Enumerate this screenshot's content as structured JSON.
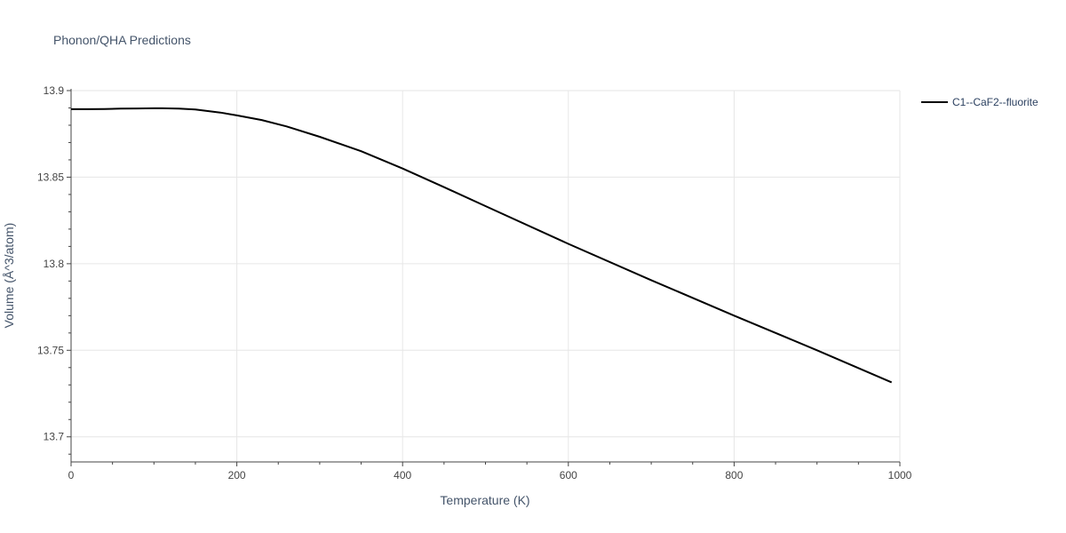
{
  "chart_data": {
    "type": "line",
    "title": "Phonon/QHA Predictions",
    "xlabel": "Temperature (K)",
    "ylabel": "Volume (Å^3/atom)",
    "xlim": [
      0,
      1000
    ],
    "ylim": [
      13.6855,
      13.9
    ],
    "x_ticks": [
      "0",
      "200",
      "400",
      "600",
      "800",
      "1000"
    ],
    "y_ticks": [
      "13.7",
      "13.75",
      "13.8",
      "13.85",
      "13.9"
    ],
    "x_tick_values": [
      0,
      200,
      400,
      600,
      800,
      1000
    ],
    "y_tick_values": [
      13.7,
      13.75,
      13.8,
      13.85,
      13.9
    ],
    "grid": true,
    "legend_position": "top-right",
    "line_color": "#000000",
    "series": [
      {
        "name": "C1--CaF2--fluorite",
        "x": [
          0,
          20,
          40,
          60,
          80,
          100,
          110,
          130,
          150,
          180,
          200,
          230,
          260,
          300,
          350,
          400,
          450,
          500,
          600,
          700,
          800,
          900,
          990
        ],
        "y": [
          13.8893,
          13.8893,
          13.8894,
          13.8896,
          13.8897,
          13.8898,
          13.8898,
          13.8896,
          13.8891,
          13.8873,
          13.8857,
          13.883,
          13.8793,
          13.8733,
          13.865,
          13.855,
          13.8442,
          13.8333,
          13.8115,
          13.7905,
          13.77,
          13.75,
          13.7315
        ]
      }
    ]
  }
}
